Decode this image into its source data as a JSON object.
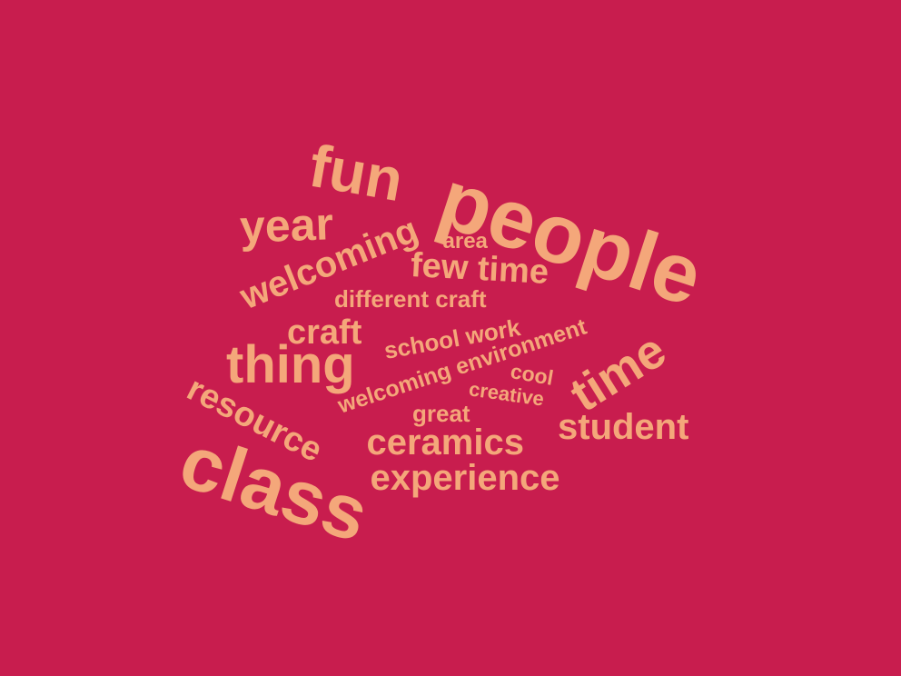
{
  "theme": {
    "background_color": "#C81D4E",
    "word_color": "#F4A77A"
  },
  "words": [
    {
      "id": "people",
      "text": "people"
    },
    {
      "id": "class",
      "text": "class"
    },
    {
      "id": "fun",
      "text": "fun"
    },
    {
      "id": "thing",
      "text": "thing"
    },
    {
      "id": "time-rotated",
      "text": "time"
    },
    {
      "id": "year",
      "text": "year"
    },
    {
      "id": "resource",
      "text": "resource"
    },
    {
      "id": "welcoming-large",
      "text": "welcoming"
    },
    {
      "id": "student",
      "text": "student"
    },
    {
      "id": "ceramics",
      "text": "ceramics"
    },
    {
      "id": "experience",
      "text": "experience"
    },
    {
      "id": "few-time",
      "text": "few time"
    },
    {
      "id": "craft",
      "text": "craft"
    },
    {
      "id": "different-craft",
      "text": "different craft"
    },
    {
      "id": "school-work",
      "text": "school work"
    },
    {
      "id": "welcoming-environment",
      "text": "welcoming environment"
    },
    {
      "id": "area",
      "text": "area"
    },
    {
      "id": "cool",
      "text": "cool"
    },
    {
      "id": "creative",
      "text": "creative"
    },
    {
      "id": "great",
      "text": "great"
    }
  ]
}
